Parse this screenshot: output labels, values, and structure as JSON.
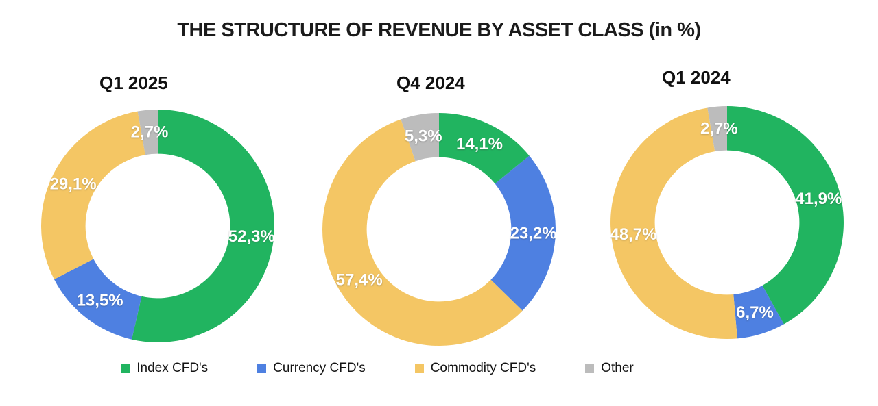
{
  "page": {
    "title": "THE STRUCTURE OF REVENUE BY ASSET CLASS (in %)",
    "background": "#ffffff"
  },
  "palette": {
    "index": "#21b460",
    "currency": "#4e80e1",
    "commodity": "#f4c664",
    "other": "#bcbcbc"
  },
  "legend": {
    "items": [
      {
        "label": "Index CFD's",
        "color_key": "index"
      },
      {
        "label": "Currency CFD's",
        "color_key": "currency"
      },
      {
        "label": "Commodity CFD's",
        "color_key": "commodity"
      },
      {
        "label": "Other",
        "color_key": "other"
      }
    ]
  },
  "chart_data": [
    {
      "type": "pie",
      "subtype": "donut",
      "title": "Q1 2025",
      "categories": [
        "Index CFD's",
        "Currency CFD's",
        "Commodity CFD's",
        "Other"
      ],
      "values": [
        52.3,
        13.5,
        29.1,
        2.7
      ],
      "labels": [
        "52,3%",
        "13,5%",
        "29,1%",
        "2,7%"
      ],
      "colors": [
        "#21b460",
        "#4e80e1",
        "#f4c664",
        "#bcbcbc"
      ],
      "start_angle_deg": 0,
      "direction": "clockwise",
      "inner_radius_ratio": 0.62,
      "legend_position": "bottom"
    },
    {
      "type": "pie",
      "subtype": "donut",
      "title": "Q4 2024",
      "categories": [
        "Index CFD's",
        "Currency CFD's",
        "Commodity CFD's",
        "Other"
      ],
      "values": [
        14.1,
        23.2,
        57.4,
        5.3
      ],
      "labels": [
        "14,1%",
        "23,2%",
        "57,4%",
        "5,3%"
      ],
      "colors": [
        "#21b460",
        "#4e80e1",
        "#f4c664",
        "#bcbcbc"
      ],
      "start_angle_deg": 0,
      "direction": "clockwise",
      "inner_radius_ratio": 0.62,
      "legend_position": "bottom"
    },
    {
      "type": "pie",
      "subtype": "donut",
      "title": "Q1 2024",
      "categories": [
        "Index CFD's",
        "Currency CFD's",
        "Commodity CFD's",
        "Other"
      ],
      "values": [
        41.9,
        6.7,
        48.7,
        2.7
      ],
      "labels": [
        "41,9%",
        "6,7%",
        "48,7%",
        "2,7%"
      ],
      "colors": [
        "#21b460",
        "#4e80e1",
        "#f4c664",
        "#bcbcbc"
      ],
      "start_angle_deg": 0,
      "direction": "clockwise",
      "inner_radius_ratio": 0.62,
      "legend_position": "bottom"
    }
  ]
}
